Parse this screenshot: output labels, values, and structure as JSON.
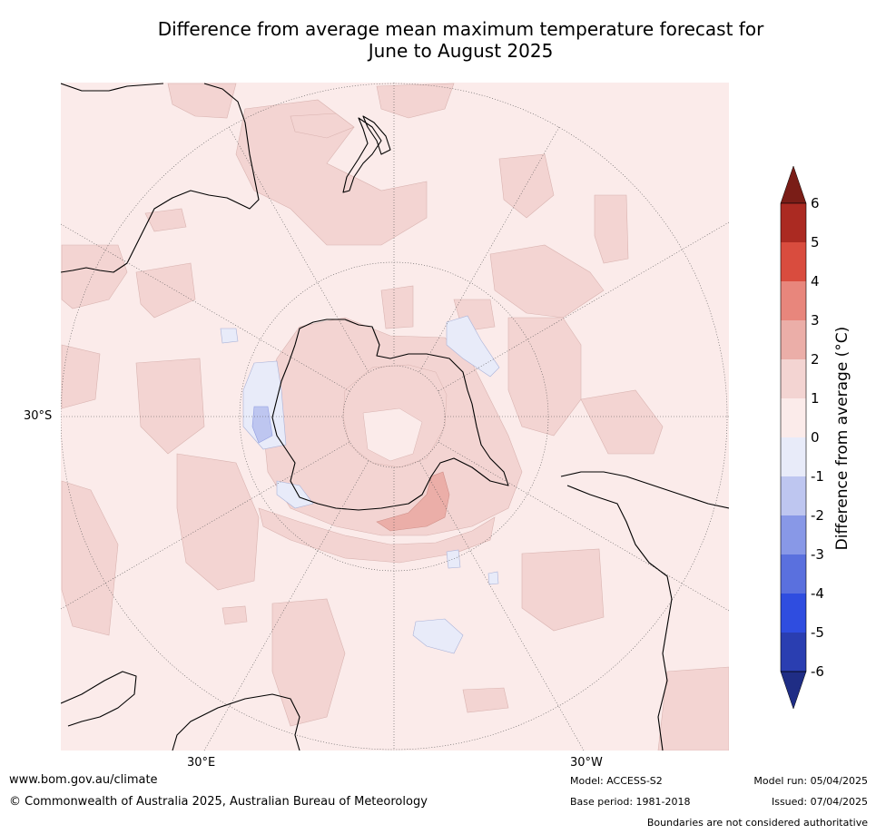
{
  "title_line1": "Difference from average mean maximum temperature forecast for",
  "title_line2": "June to August 2025",
  "map": {
    "projection": "south-polar-stereographic",
    "lat_label": "30°S",
    "lon_labels": {
      "east": "30°E",
      "west": "30°W"
    },
    "colors": {
      "ocean_background": "#fbebea",
      "warm_1_2": "#f3d4d2",
      "warm_2_3": "#ebaea8",
      "cool_0_m1": "#e8ebf9",
      "cool_m1_m2": "#bec6f0",
      "coastline": "#000000",
      "grid": "#444444"
    }
  },
  "colorbar": {
    "label": "Difference from average (°C)",
    "ticks": [
      "6",
      "5",
      "4",
      "3",
      "2",
      "1",
      "0",
      "-1",
      "-2",
      "-3",
      "-4",
      "-5",
      "-6"
    ],
    "bins": [
      {
        "range": "5 to 6",
        "color": "#ab2a22"
      },
      {
        "range": "4 to 5",
        "color": "#d94c3e"
      },
      {
        "range": "3 to 4",
        "color": "#e8867c"
      },
      {
        "range": "2 to 3",
        "color": "#ebaea8"
      },
      {
        "range": "1 to 2",
        "color": "#f3d4d2"
      },
      {
        "range": "0 to 1",
        "color": "#fbebea"
      },
      {
        "range": "-1 to 0",
        "color": "#e8ebf9"
      },
      {
        "range": "-2 to -1",
        "color": "#bec6f0"
      },
      {
        "range": "-3 to -2",
        "color": "#8898e7"
      },
      {
        "range": "-4 to -3",
        "color": "#5a70de"
      },
      {
        "range": "-5 to -4",
        "color": "#2f4de0"
      },
      {
        "range": "-6 to -5",
        "color": "#2a3eb1"
      }
    ],
    "over_color": "#7a1d17",
    "under_color": "#1f2d85"
  },
  "footer": {
    "website": "www.bom.gov.au/climate",
    "copyright": "© Commonwealth of Australia 2025, Australian Bureau of Meteorology",
    "model": "Model: ACCESS-S2",
    "base_period": "Base period: 1981-2018",
    "model_run": "Model run: 05/04/2025",
    "issued": "Issued: 07/04/2025",
    "disclaimer": "Boundaries are not considered authoritative"
  }
}
